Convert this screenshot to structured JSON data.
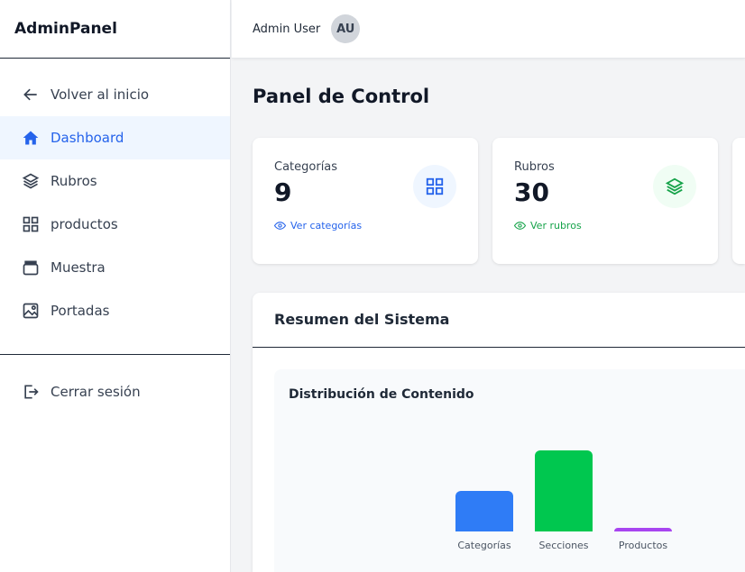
{
  "brand": "AdminPanel",
  "sidebar": {
    "items": [
      {
        "label": "Volver al inicio",
        "icon": "arrow-left-icon"
      },
      {
        "label": "Dashboard",
        "icon": "home-icon",
        "active": true
      },
      {
        "label": "Rubros",
        "icon": "layers-icon"
      },
      {
        "label": "productos",
        "icon": "grid-icon"
      },
      {
        "label": "Muestra",
        "icon": "archive-icon"
      },
      {
        "label": "Portadas",
        "icon": "image-icon"
      }
    ],
    "logout": "Cerrar sesión"
  },
  "topbar": {
    "user": "Admin User",
    "avatar": "AU"
  },
  "page_title": "Panel de Control",
  "cards": [
    {
      "label": "Categorías",
      "value": "9",
      "link": "Ver categorías",
      "color": "#2563eb",
      "bg": "#eff6ff",
      "icon": "grid-icon"
    },
    {
      "label": "Rubros",
      "value": "30",
      "link": "Ver rubros",
      "color": "#16a34a",
      "bg": "#f0fdf4",
      "icon": "layers-icon"
    }
  ],
  "panel": {
    "title": "Resumen del Sistema",
    "chart_title": "Distribución de Contenido"
  },
  "chart_data": {
    "type": "bar",
    "title": "Distribución de Contenido",
    "categories": [
      "Categorías",
      "Secciones",
      "Productos"
    ],
    "values": [
      9,
      18,
      0
    ],
    "colors": [
      "#2f7cf6",
      "#00c74f",
      "#a845f0"
    ]
  }
}
